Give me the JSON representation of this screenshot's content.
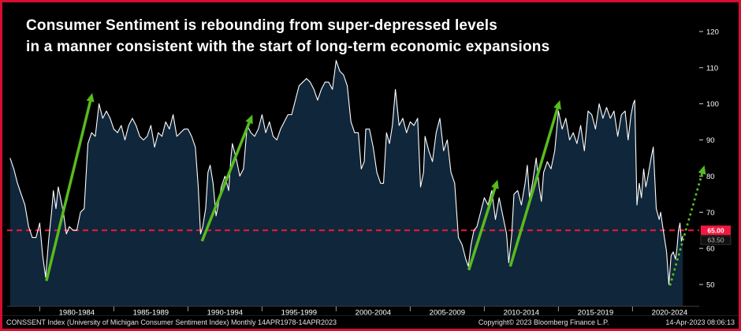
{
  "title": {
    "line1": "Consumer Sentiment is rebounding from super-depressed levels",
    "line2": "in a manner consistent with the start of long-term economic expansions"
  },
  "footer": {
    "left": "CONSSENT Index (University of Michigan Consumer Sentiment Index)  Monthly 14APR1978-14APR2023",
    "copyright": "Copyright© 2023 Bloomberg Finance L.P.",
    "timestamp": "14-Apr-2023 08:06:13"
  },
  "colors": {
    "frame_border": "#d40e31",
    "background": "#000000",
    "line": "#ffffff",
    "area_fill": "#10263a",
    "arrow_green": "#58bb1e",
    "threshold_red": "#f01840",
    "axis_text": "#ffffff"
  },
  "chart_data": {
    "type": "area",
    "title": "Consumer Sentiment is rebounding from super-depressed levels in a manner consistent with the start of long-term economic expansions",
    "series_name": "CONSSENT Index (University of Michigan Consumer Sentiment Index)",
    "frequency": "Monthly",
    "xlim": [
      1977.8,
      2024.5
    ],
    "ylim": [
      44,
      124
    ],
    "y_ticks": [
      50,
      60,
      70,
      80,
      90,
      100,
      110,
      120
    ],
    "x_segments": [
      {
        "label": "1980-1984",
        "center": 1982.5
      },
      {
        "label": "1985-1989",
        "center": 1987.5
      },
      {
        "label": "1990-1994",
        "center": 1992.5
      },
      {
        "label": "1995-1999",
        "center": 1997.5
      },
      {
        "label": "2000-2004",
        "center": 2002.5
      },
      {
        "label": "2005-2009",
        "center": 2007.5
      },
      {
        "label": "2010-2014",
        "center": 2012.5
      },
      {
        "label": "2015-2019",
        "center": 2017.5
      },
      {
        "label": "2020-2024",
        "center": 2022.5
      }
    ],
    "x_boundaries": [
      1980,
      1985,
      1990,
      1995,
      2000,
      2005,
      2010,
      2015,
      2020
    ],
    "threshold": {
      "value": 65,
      "label": "65.00",
      "color": "#f01840"
    },
    "last_value_label": "63.50",
    "arrows": [
      {
        "from": [
          1980.45,
          51
        ],
        "to": [
          1983.55,
          103
        ],
        "style": "solid"
      },
      {
        "from": [
          1990.95,
          62
        ],
        "to": [
          1994.35,
          97
        ],
        "style": "solid"
      },
      {
        "from": [
          2008.95,
          54
        ],
        "to": [
          2010.9,
          79
        ],
        "style": "solid"
      },
      {
        "from": [
          2011.75,
          55
        ],
        "to": [
          2015.1,
          101
        ],
        "style": "solid"
      },
      {
        "from": [
          2022.55,
          50
        ],
        "to": [
          2024.85,
          83
        ],
        "style": "dotted"
      }
    ],
    "points": [
      [
        1978.0,
        85
      ],
      [
        1978.25,
        82
      ],
      [
        1978.5,
        78
      ],
      [
        1978.75,
        75
      ],
      [
        1979.0,
        72
      ],
      [
        1979.25,
        66
      ],
      [
        1979.5,
        63
      ],
      [
        1979.75,
        63
      ],
      [
        1980.0,
        67
      ],
      [
        1980.2,
        58
      ],
      [
        1980.4,
        52
      ],
      [
        1980.6,
        62
      ],
      [
        1980.8,
        70
      ],
      [
        1980.92,
        76
      ],
      [
        1981.1,
        71
      ],
      [
        1981.25,
        77
      ],
      [
        1981.4,
        74
      ],
      [
        1981.6,
        70
      ],
      [
        1981.8,
        64
      ],
      [
        1982.0,
        66
      ],
      [
        1982.25,
        65
      ],
      [
        1982.5,
        65
      ],
      [
        1982.75,
        70
      ],
      [
        1983.0,
        71
      ],
      [
        1983.25,
        89
      ],
      [
        1983.5,
        92
      ],
      [
        1983.75,
        91
      ],
      [
        1984.0,
        100
      ],
      [
        1984.25,
        96
      ],
      [
        1984.5,
        98
      ],
      [
        1984.75,
        96
      ],
      [
        1985.0,
        93
      ],
      [
        1985.25,
        92
      ],
      [
        1985.5,
        94
      ],
      [
        1985.75,
        90
      ],
      [
        1986.0,
        94
      ],
      [
        1986.25,
        96
      ],
      [
        1986.5,
        94
      ],
      [
        1986.75,
        91
      ],
      [
        1987.0,
        90
      ],
      [
        1987.25,
        91
      ],
      [
        1987.5,
        94
      ],
      [
        1987.75,
        88
      ],
      [
        1988.0,
        92
      ],
      [
        1988.25,
        91
      ],
      [
        1988.5,
        95
      ],
      [
        1988.75,
        93
      ],
      [
        1989.0,
        97
      ],
      [
        1989.25,
        91
      ],
      [
        1989.5,
        92
      ],
      [
        1989.75,
        93
      ],
      [
        1990.0,
        93
      ],
      [
        1990.25,
        91
      ],
      [
        1990.5,
        88
      ],
      [
        1990.7,
        77
      ],
      [
        1990.85,
        64
      ],
      [
        1991.0,
        66
      ],
      [
        1991.2,
        71
      ],
      [
        1991.35,
        81
      ],
      [
        1991.5,
        83
      ],
      [
        1991.7,
        78
      ],
      [
        1991.9,
        69
      ],
      [
        1992.0,
        71
      ],
      [
        1992.25,
        77
      ],
      [
        1992.5,
        80
      ],
      [
        1992.75,
        76
      ],
      [
        1992.9,
        85
      ],
      [
        1993.0,
        89
      ],
      [
        1993.25,
        85
      ],
      [
        1993.5,
        80
      ],
      [
        1993.75,
        82
      ],
      [
        1994.0,
        94
      ],
      [
        1994.25,
        92
      ],
      [
        1994.5,
        91
      ],
      [
        1994.75,
        93
      ],
      [
        1995.0,
        97
      ],
      [
        1995.25,
        92
      ],
      [
        1995.5,
        95
      ],
      [
        1995.75,
        91
      ],
      [
        1996.0,
        90
      ],
      [
        1996.25,
        93
      ],
      [
        1996.5,
        95
      ],
      [
        1996.75,
        97
      ],
      [
        1997.0,
        97
      ],
      [
        1997.25,
        101
      ],
      [
        1997.5,
        105
      ],
      [
        1997.75,
        106
      ],
      [
        1998.0,
        107
      ],
      [
        1998.25,
        106
      ],
      [
        1998.5,
        104
      ],
      [
        1998.75,
        101
      ],
      [
        1999.0,
        104
      ],
      [
        1999.25,
        106
      ],
      [
        1999.5,
        106
      ],
      [
        1999.75,
        104
      ],
      [
        2000.0,
        112
      ],
      [
        2000.25,
        109
      ],
      [
        2000.5,
        108
      ],
      [
        2000.75,
        105
      ],
      [
        2001.0,
        95
      ],
      [
        2001.25,
        92
      ],
      [
        2001.5,
        92
      ],
      [
        2001.7,
        82
      ],
      [
        2001.9,
        84
      ],
      [
        2002.0,
        93
      ],
      [
        2002.25,
        93
      ],
      [
        2002.5,
        88
      ],
      [
        2002.75,
        81
      ],
      [
        2003.0,
        78
      ],
      [
        2003.2,
        78
      ],
      [
        2003.4,
        92
      ],
      [
        2003.6,
        89
      ],
      [
        2003.8,
        94
      ],
      [
        2004.0,
        104
      ],
      [
        2004.25,
        94
      ],
      [
        2004.5,
        96
      ],
      [
        2004.75,
        92
      ],
      [
        2005.0,
        95
      ],
      [
        2005.25,
        94
      ],
      [
        2005.5,
        96
      ],
      [
        2005.7,
        77
      ],
      [
        2005.9,
        81
      ],
      [
        2006.0,
        91
      ],
      [
        2006.25,
        87
      ],
      [
        2006.5,
        84
      ],
      [
        2006.75,
        92
      ],
      [
        2007.0,
        96
      ],
      [
        2007.25,
        87
      ],
      [
        2007.5,
        90
      ],
      [
        2007.75,
        81
      ],
      [
        2008.0,
        78
      ],
      [
        2008.25,
        63
      ],
      [
        2008.5,
        61
      ],
      [
        2008.75,
        57
      ],
      [
        2008.92,
        55
      ],
      [
        2009.1,
        61
      ],
      [
        2009.3,
        65
      ],
      [
        2009.5,
        66
      ],
      [
        2009.75,
        70
      ],
      [
        2010.0,
        74
      ],
      [
        2010.25,
        72
      ],
      [
        2010.5,
        76
      ],
      [
        2010.75,
        68
      ],
      [
        2011.0,
        74
      ],
      [
        2011.25,
        69
      ],
      [
        2011.5,
        64
      ],
      [
        2011.65,
        56
      ],
      [
        2011.85,
        64
      ],
      [
        2012.0,
        75
      ],
      [
        2012.25,
        76
      ],
      [
        2012.5,
        72
      ],
      [
        2012.75,
        78
      ],
      [
        2012.9,
        83
      ],
      [
        2013.05,
        74
      ],
      [
        2013.25,
        78
      ],
      [
        2013.5,
        85
      ],
      [
        2013.7,
        77
      ],
      [
        2013.85,
        73
      ],
      [
        2014.0,
        81
      ],
      [
        2014.25,
        84
      ],
      [
        2014.5,
        82
      ],
      [
        2014.75,
        87
      ],
      [
        2015.0,
        98
      ],
      [
        2015.25,
        93
      ],
      [
        2015.5,
        96
      ],
      [
        2015.75,
        90
      ],
      [
        2016.0,
        92
      ],
      [
        2016.25,
        89
      ],
      [
        2016.5,
        94
      ],
      [
        2016.75,
        87
      ],
      [
        2017.0,
        98
      ],
      [
        2017.25,
        97
      ],
      [
        2017.5,
        93
      ],
      [
        2017.75,
        100
      ],
      [
        2018.0,
        96
      ],
      [
        2018.25,
        99
      ],
      [
        2018.5,
        96
      ],
      [
        2018.75,
        98
      ],
      [
        2019.0,
        91
      ],
      [
        2019.25,
        97
      ],
      [
        2019.5,
        98
      ],
      [
        2019.7,
        90
      ],
      [
        2019.9,
        97
      ],
      [
        2020.05,
        100
      ],
      [
        2020.15,
        101
      ],
      [
        2020.3,
        72
      ],
      [
        2020.45,
        78
      ],
      [
        2020.6,
        74
      ],
      [
        2020.75,
        82
      ],
      [
        2020.9,
        77
      ],
      [
        2021.0,
        79
      ],
      [
        2021.25,
        85
      ],
      [
        2021.4,
        88
      ],
      [
        2021.6,
        71
      ],
      [
        2021.8,
        68
      ],
      [
        2021.9,
        70
      ],
      [
        2022.0,
        67
      ],
      [
        2022.15,
        63
      ],
      [
        2022.3,
        59
      ],
      [
        2022.45,
        50
      ],
      [
        2022.6,
        58
      ],
      [
        2022.75,
        59
      ],
      [
        2022.9,
        57
      ],
      [
        2023.0,
        60
      ],
      [
        2023.1,
        65
      ],
      [
        2023.2,
        67
      ],
      [
        2023.3,
        62
      ],
      [
        2023.4,
        63.5
      ]
    ]
  }
}
